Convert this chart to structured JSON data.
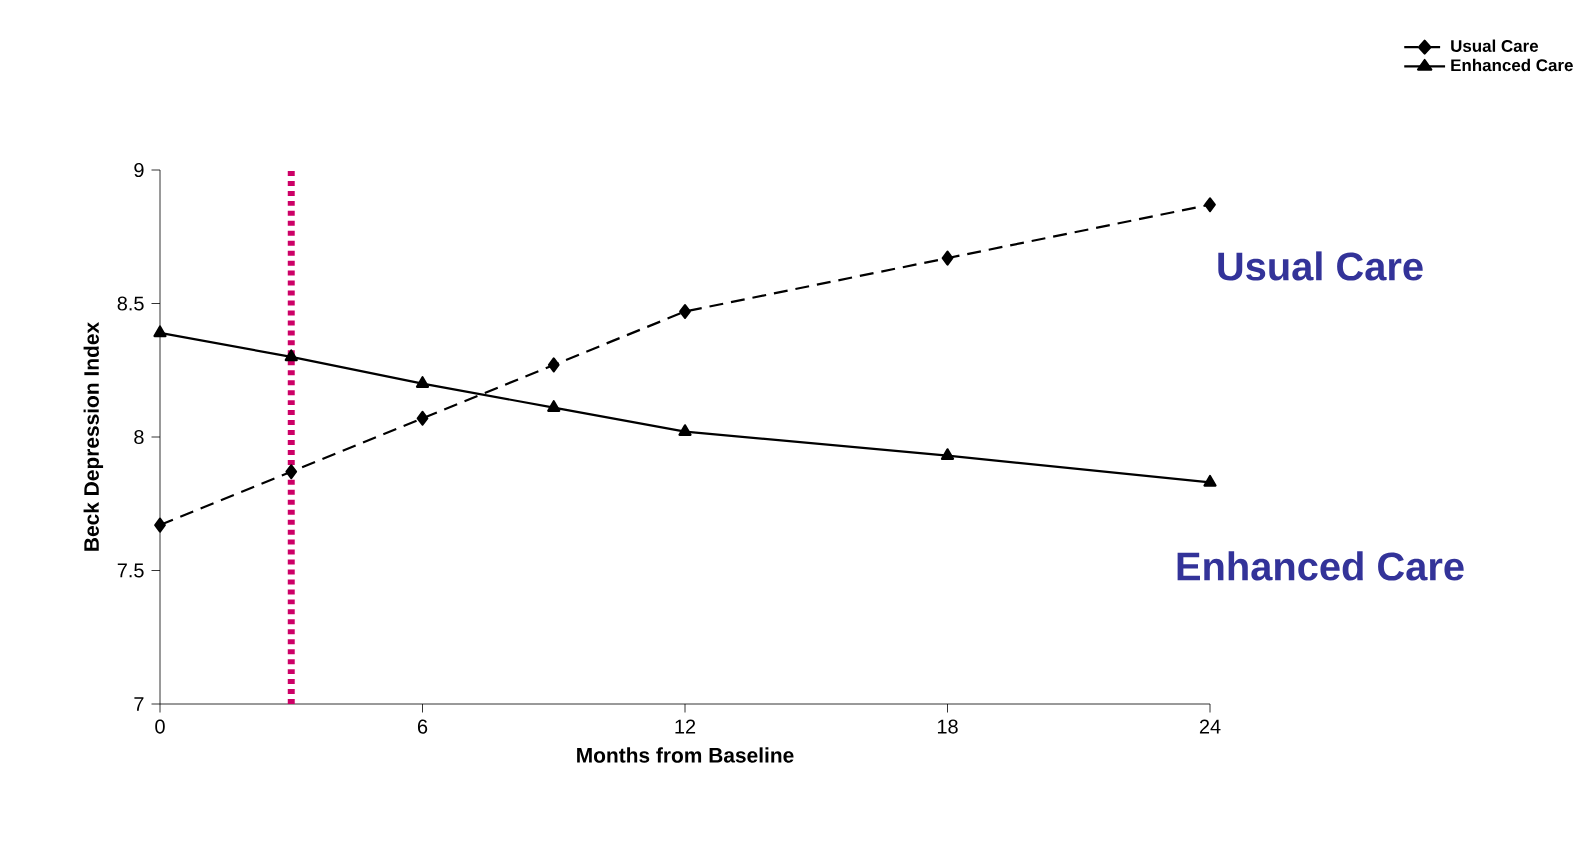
{
  "chart_data": {
    "type": "line",
    "xlabel": "Months from Baseline",
    "ylabel": "Beck Depression Index",
    "x": [
      0,
      3,
      6,
      9,
      12,
      18,
      24
    ],
    "series": [
      {
        "name": "Usual Care",
        "color": "#000000",
        "marker": "diamond",
        "line_style": "dashed",
        "values": [
          7.67,
          7.87,
          8.07,
          8.27,
          8.47,
          8.67,
          8.87
        ]
      },
      {
        "name": "Enhanced Care",
        "color": "#000000",
        "marker": "triangle",
        "line_style": "solid",
        "values": [
          8.39,
          8.3,
          8.2,
          8.11,
          8.02,
          7.93,
          7.83
        ]
      }
    ],
    "xlim": [
      0,
      24
    ],
    "xticks": [
      0,
      6,
      12,
      18,
      24
    ],
    "ylim": [
      7,
      9
    ],
    "yticks": [
      7,
      7.5,
      8,
      8.5,
      9
    ],
    "ref_lines": [
      {
        "axis": "x",
        "value": 3,
        "color": "#cc0066",
        "line_style": "dotted"
      }
    ],
    "annotations": [
      "Usual Care",
      "Enhanced Care"
    ],
    "grid": false,
    "legend": "top right"
  }
}
